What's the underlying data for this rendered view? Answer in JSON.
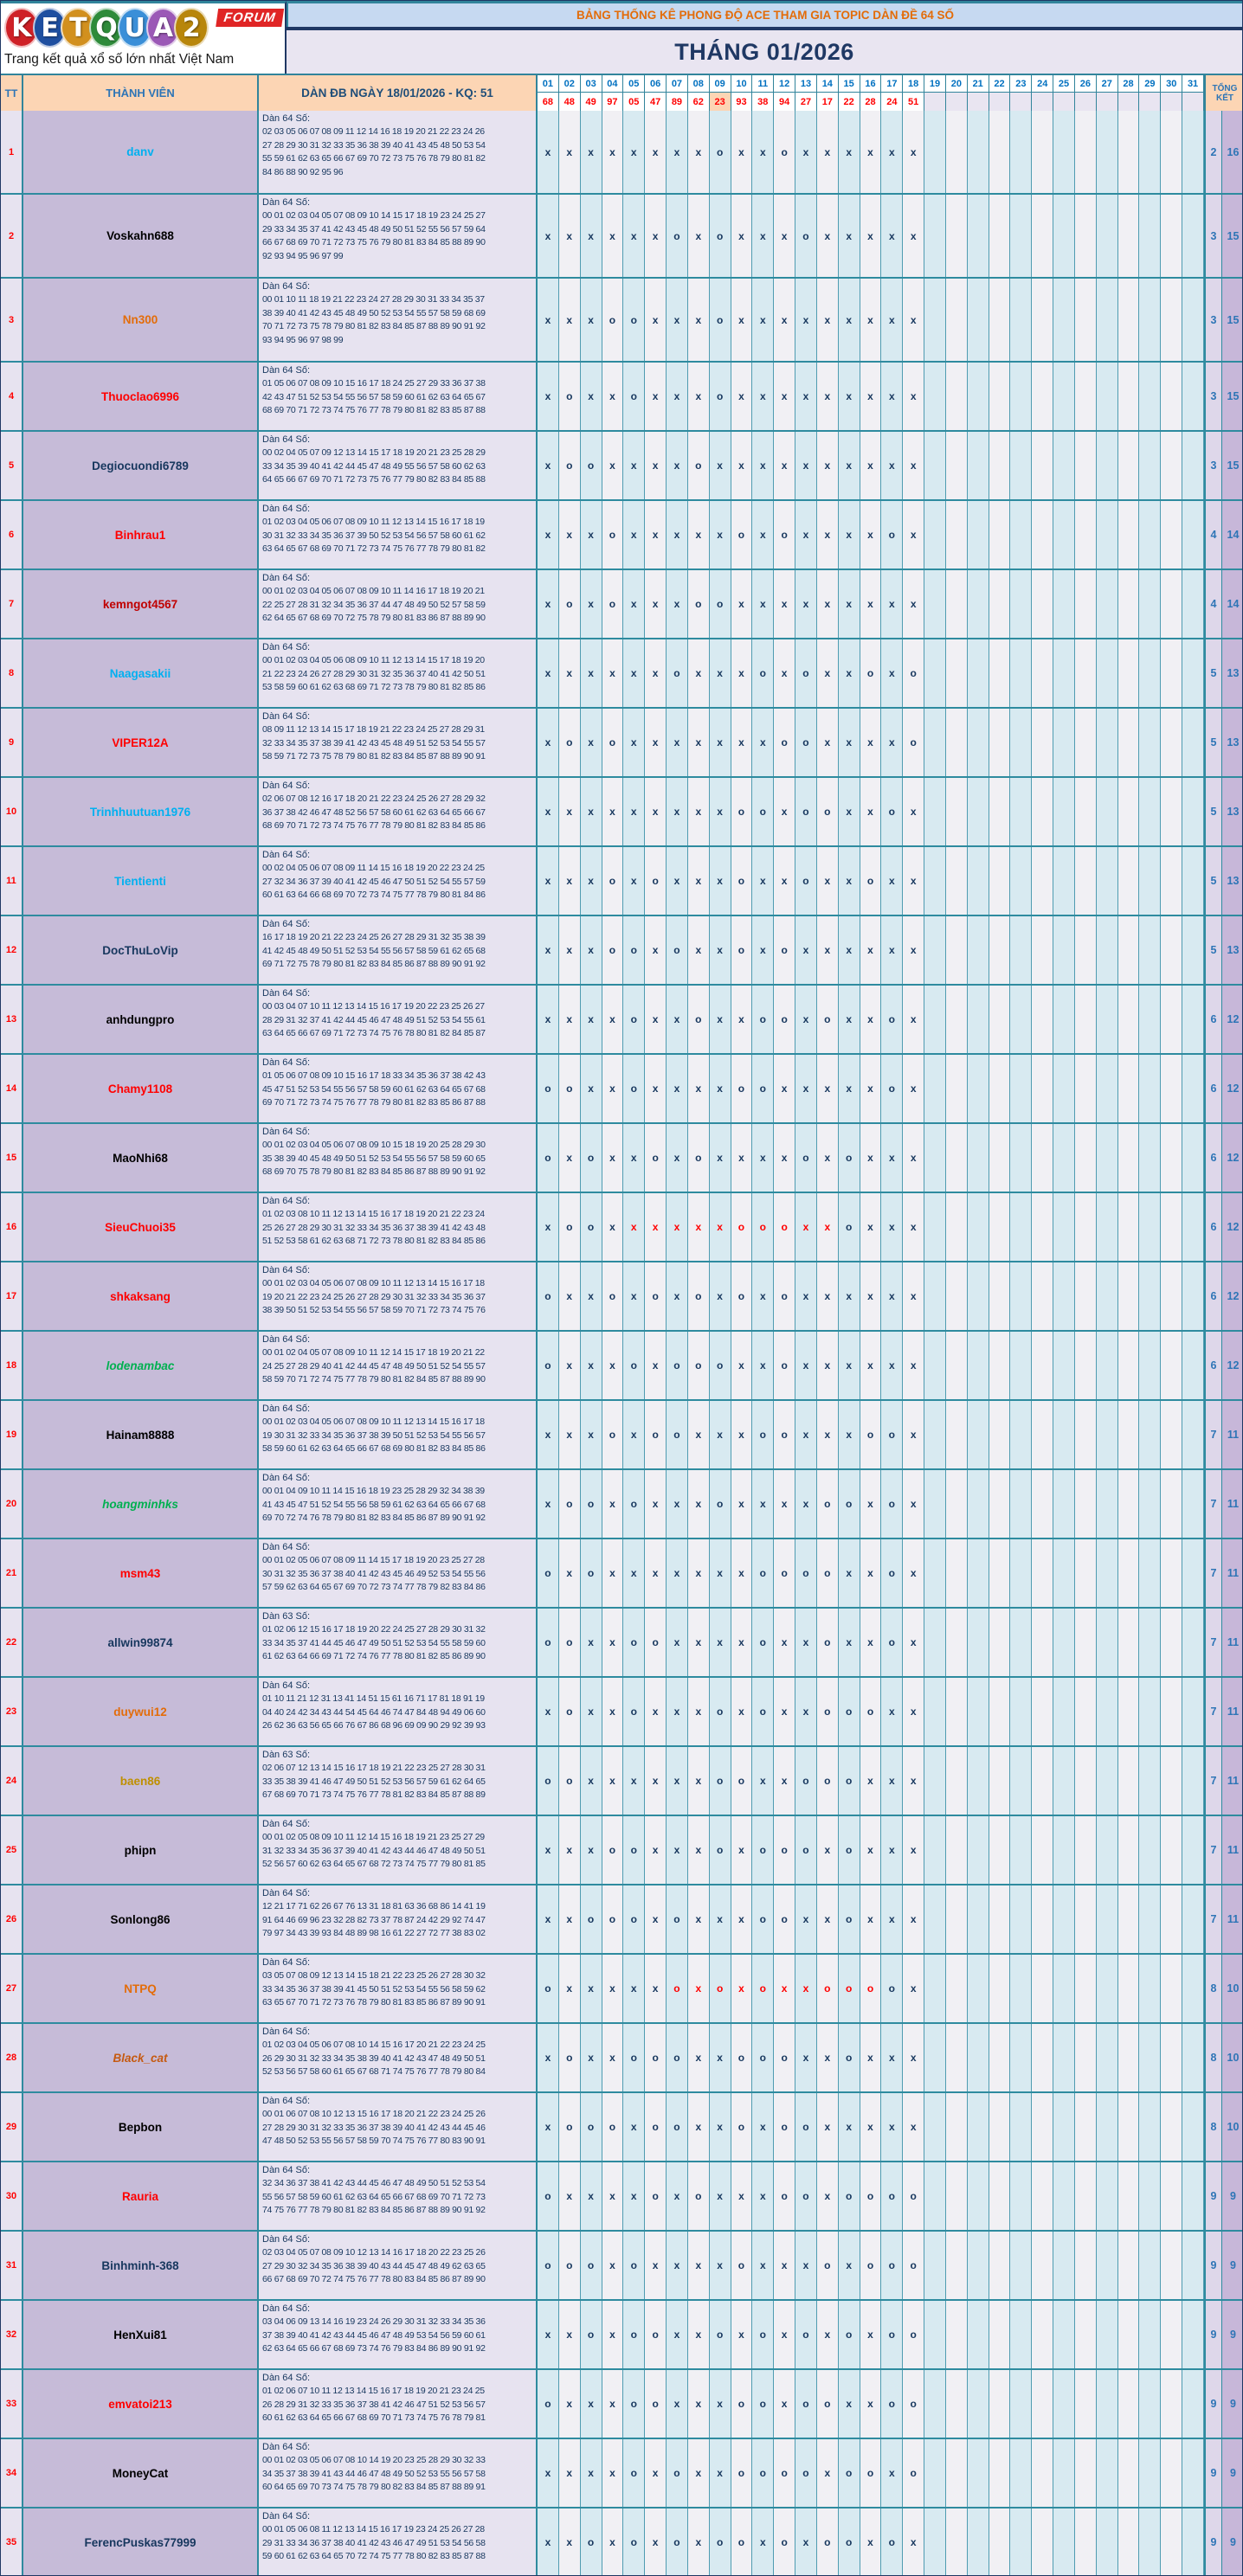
{
  "logo": {
    "letters": [
      {
        "ch": "K",
        "color": "#cf2127"
      },
      {
        "ch": "E",
        "color": "#1e4fa0"
      },
      {
        "ch": "T",
        "color": "#d2901e"
      },
      {
        "ch": "Q",
        "color": "#2e8b3a"
      },
      {
        "ch": "U",
        "color": "#3a8fd8"
      },
      {
        "ch": "A",
        "color": "#9b59b6"
      },
      {
        "ch": "2",
        "color": "#b8860b"
      }
    ],
    "forum_label": "FORUM",
    "tagline": "Trang kết quả xổ số lớn nhất Việt Nam"
  },
  "header": {
    "banner": "BẢNG THỐNG KÊ PHONG ĐỘ ACE THAM GIA TOPIC DÀN ĐỀ 64 SỐ",
    "month": "THÁNG 01/2026",
    "tt": "TT",
    "member": "THÀNH VIÊN",
    "dan": "DÀN ĐB NGÀY 18/01/2026 - KQ: 51",
    "tongket": "TỔNG KẾT",
    "days": [
      "01",
      "02",
      "03",
      "04",
      "05",
      "06",
      "07",
      "08",
      "09",
      "10",
      "11",
      "12",
      "13",
      "14",
      "15",
      "16",
      "17",
      "18",
      "19",
      "20",
      "21",
      "22",
      "23",
      "24",
      "25",
      "26",
      "27",
      "28",
      "29",
      "30",
      "31"
    ],
    "results": [
      "68",
      "48",
      "49",
      "97",
      "05",
      "47",
      "89",
      "62",
      "23",
      "93",
      "38",
      "94",
      "27",
      "17",
      "22",
      "28",
      "24",
      "51",
      "",
      "",
      "",
      "",
      "",
      "",
      "",
      "",
      "",
      "",
      "",
      "",
      ""
    ],
    "highlight_day": 9,
    "accent_colors": {
      "banner_bg": "#c6d9f1",
      "banner_text": "#e36c09",
      "header_bg": "#fcd5b4",
      "day_text": "#0070c0",
      "result_text": "#ff0000",
      "border_teal": "#2e8b9f",
      "mark_navy": "#17375e",
      "mark_red": "#ff0000"
    }
  },
  "rows": [
    {
      "tt": "1",
      "name": "danv",
      "color": "#00b0f0",
      "italic": false,
      "dan_title": "Dàn 64 Số:",
      "lines": [
        "02 03 05 06 07 08 09 11 12 14 16 18 19 20 21 22 23 24 26",
        "27 28 29 30 31 32 33 35 36 38 39 40 41 43 45 48 50 53 54",
        "55 59 61 62 63 65 66 67 69 70 72 73 75 76 78 79 80 81 82",
        "84 86 88 90 92 95 96"
      ],
      "marks": "xxxxxxxxoxxoxxxxxx",
      "red_from": 0,
      "red_to": 0,
      "total_o": "2",
      "total_x": "16"
    },
    {
      "tt": "2",
      "name": "Voskahn688",
      "color": "#000000",
      "italic": false,
      "dan_title": "Dàn 64 Số:",
      "lines": [
        "00 01 02 03 04 05 07 08 09 10 14 15 17 18 19 23 24 25 27",
        "29 33 34 35 37 41 42 43 45 48 49 50 51 52 55 56 57 59 64",
        "66 67 68 69 70 71 72 73 75 76 79 80 81 83 84 85 88 89 90",
        "92 93 94 95 96 97 99"
      ],
      "marks": "xxxxxxoxoxxxoxxxxx",
      "red_from": 0,
      "red_to": 0,
      "total_o": "3",
      "total_x": "15"
    },
    {
      "tt": "3",
      "name": "Nn300",
      "color": "#e36c09",
      "italic": false,
      "dan_title": "Dàn 64 Số:",
      "lines": [
        "00 01 10 11 18 19 21 22 23 24 27 28 29 30 31 33 34 35 37",
        "38 39 40 41 42 43 45 48 49 50 52 53 54 55 57 58 59 68 69",
        "70 71 72 73 75 78 79 80 81 82 83 84 85 87 88 89 90 91 92",
        "93 94 95 96 97 98 99"
      ],
      "marks": "xxxooxxxoxxxxxxxxx",
      "red_from": 0,
      "red_to": 0,
      "total_o": "3",
      "total_x": "15"
    },
    {
      "tt": "4",
      "name": "Thuoclao6996",
      "color": "#ff0000",
      "italic": false,
      "dan_title": "Dàn 64 Số:",
      "lines": [
        "01 05 06 07 08 09 10 15 16 17 18 24 25 27 29 33 36 37 38",
        "42 43 47 51 52 53 54 55 56 57 58 59 60 61 62 63 64 65 67",
        "68 69 70 71 72 73 74 75 76 77 78 79 80 81 82 83 85 87 88"
      ],
      "marks": "xoxxoxxxoxxxxxxxxx",
      "red_from": 0,
      "red_to": 0,
      "total_o": "3",
      "total_x": "15"
    },
    {
      "tt": "5",
      "name": "Degiocuondi6789",
      "color": "#17375e",
      "italic": false,
      "dan_title": "Dàn 64 Số:",
      "lines": [
        "00 02 04 05 07 09 12 13 14 15 17 18 19 20 21 23 25 28 29",
        "33 34 35 39 40 41 42 44 45 47 48 49 55 56 57 58 60 62 63",
        "64 65 66 67 69 70 71 72 73 75 76 77 79 80 82 83 84 85 88"
      ],
      "marks": "xooxxxxoxxxxxxxxxx",
      "red_from": 0,
      "red_to": 0,
      "total_o": "3",
      "total_x": "15"
    },
    {
      "tt": "6",
      "name": "Binhrau1",
      "color": "#ff0000",
      "italic": false,
      "dan_title": "Dàn 64 Số:",
      "lines": [
        "01 02 03 04 05 06 07 08 09 10 11 12 13 14 15 16 17 18 19",
        "30 31 32 33 34 35 36 37 39 50 52 53 54 56 57 58 60 61 62",
        "63 64 65 67 68 69 70 71 72 73 74 75 76 77 78 79 80 81 82"
      ],
      "marks": "xxxoxxxxxoxoxxxxox",
      "red_from": 0,
      "red_to": 0,
      "total_o": "4",
      "total_x": "14"
    },
    {
      "tt": "7",
      "name": "kemngot4567",
      "color": "#c00000",
      "italic": false,
      "dan_title": "Dàn 64 Số:",
      "lines": [
        "00 01 02 03 04 05 06 07 08 09 10 11 14 16 17 18 19 20 21",
        "22 25 27 28 31 32 34 35 36 37 44 47 48 49 50 52 57 58 59",
        "62 64 65 67 68 69 70 72 75 78 79 80 81 83 86 87 88 89 90"
      ],
      "marks": "xoxoxxxooxxxxxxxxx",
      "red_from": 0,
      "red_to": 0,
      "total_o": "4",
      "total_x": "14"
    },
    {
      "tt": "8",
      "name": "Naagasakii",
      "color": "#00b0f0",
      "italic": false,
      "dan_title": "Dàn 64 Số:",
      "lines": [
        "00 01 02 03 04 05 06 08 09 10 11 12 13 14 15 17 18 19 20",
        "21 22 23 24 26 27 28 29 30 31 32 35 36 37 40 41 42 50 51",
        "53 58 59 60 61 62 63 68 69 71 72 73 78 79 80 81 82 85 86"
      ],
      "marks": "xxxxxxoxxxoxoxxoxo",
      "red_from": 0,
      "red_to": 0,
      "total_o": "5",
      "total_x": "13"
    },
    {
      "tt": "9",
      "name": "VIPER12A",
      "color": "#ff0000",
      "italic": false,
      "dan_title": "Dàn 64 Số:",
      "lines": [
        "08 09 11 12 13 14 15 17 18 19 21 22 23 24 25 27 28 29 31",
        "32 33 34 35 37 38 39 41 42 43 45 48 49 51 52 53 54 55 57",
        "58 59 71 72 73 75 78 79 80 81 82 83 84 85 87 88 89 90 91"
      ],
      "marks": "xoxoxxxxxxxooxxxxo",
      "red_from": 0,
      "red_to": 0,
      "total_o": "5",
      "total_x": "13"
    },
    {
      "tt": "10",
      "name": "Trinhhuutuan1976",
      "color": "#00b0f0",
      "italic": false,
      "dan_title": "Dàn 64 Số:",
      "lines": [
        "02 06 07 08 12 16 17 18 20 21 22 23 24 25 26 27 28 29 32",
        "36 37 38 42 46 47 48 52 56 57 58 60 61 62 63 64 65 66 67",
        "68 69 70 71 72 73 74 75 76 77 78 79 80 81 82 83 84 85 86"
      ],
      "marks": "xxxxxxxxxooxooxxox",
      "red_from": 0,
      "red_to": 0,
      "total_o": "5",
      "total_x": "13"
    },
    {
      "tt": "11",
      "name": "Tientienti",
      "color": "#00b0f0",
      "italic": false,
      "dan_title": "Dàn 64 Số:",
      "lines": [
        "00 02 04 05 06 07 08 09 11 14 15 16 18 19 20 22 23 24 25",
        "27 32 34 36 37 39 40 41 42 45 46 47 50 51 52 54 55 57 59",
        "60 61 63 64 66 68 69 70 72 73 74 75 77 78 79 80 81 84 86"
      ],
      "marks": "xxxoxoxxxoxxoxxoxx",
      "red_from": 0,
      "red_to": 0,
      "total_o": "5",
      "total_x": "13"
    },
    {
      "tt": "12",
      "name": "DocThuLoVip",
      "color": "#17375e",
      "italic": false,
      "dan_title": "Dàn 64 Số:",
      "lines": [
        "16 17 18 19 20 21 22 23 24 25 26 27 28 29 31 32 35 38 39",
        "41 42 45 48 49 50 51 52 53 54 55 56 57 58 59 61 62 65 68",
        "69 71 72 75 78 79 80 81 82 83 84 85 86 87 88 89 90 91 92"
      ],
      "marks": "xxxooxoxxoxoxxxxxx",
      "red_from": 0,
      "red_to": 0,
      "total_o": "5",
      "total_x": "13"
    },
    {
      "tt": "13",
      "name": "anhdungpro",
      "color": "#000000",
      "italic": false,
      "dan_title": "Dàn 64 Số:",
      "lines": [
        "00 03 04 07 10 11 12 13 14 15 16 17 19 20 22 23 25 26 27",
        "28 29 31 32 37 41 42 44 45 46 47 48 49 51 52 53 54 55 61",
        "63 64 65 66 67 69 71 72 73 74 75 76 78 80 81 82 84 85 87"
      ],
      "marks": "xxxxoxxoxxooxoxxox",
      "red_from": 0,
      "red_to": 0,
      "total_o": "6",
      "total_x": "12"
    },
    {
      "tt": "14",
      "name": "Chamy1108",
      "color": "#ff0000",
      "italic": false,
      "dan_title": "Dàn 64 Số:",
      "lines": [
        "01 05 06 07 08 09 10 15 16 17 18 33 34 35 36 37 38 42 43",
        "45 47 51 52 53 54 55 56 57 58 59 60 61 62 63 64 65 67 68",
        "69 70 71 72 73 74 75 76 77 78 79 80 81 82 83 85 86 87 88"
      ],
      "marks": "ooxxoxxxxooxxxxxox",
      "red_from": 0,
      "red_to": 0,
      "total_o": "6",
      "total_x": "12"
    },
    {
      "tt": "15",
      "name": "MaoNhi68",
      "color": "#000000",
      "italic": false,
      "dan_title": "Dàn 64 Số:",
      "lines": [
        "00 01 02 03 04 05 06 07 08 09 10 15 18 19 20 25 28 29 30",
        "35 38 39 40 45 48 49 50 51 52 53 54 55 56 57 58 59 60 65",
        "68 69 70 75 78 79 80 81 82 83 84 85 86 87 88 89 90 91 92"
      ],
      "marks": "oxoxxoxoxxxxoxoxxx",
      "red_from": 0,
      "red_to": 0,
      "total_o": "6",
      "total_x": "12"
    },
    {
      "tt": "16",
      "name": "SieuChuoi35",
      "color": "#ff0000",
      "italic": false,
      "dan_title": "Dàn 64 Số:",
      "lines": [
        "01 02 03 08 10 11 12 13 14 15 16 17 18 19 20 21 22 23 24",
        "25 26 27 28 29 30 31 32 33 34 35 36 37 38 39 41 42 43 48",
        "51 52 53 58 61 62 63 68 71 72 73 78 80 81 82 83 84 85 86"
      ],
      "marks": "xooxxxxxxoooxxoxxx",
      "red_from": 5,
      "red_to": 14,
      "total_o": "6",
      "total_x": "12"
    },
    {
      "tt": "17",
      "name": "shkaksang",
      "color": "#ff0000",
      "italic": false,
      "dan_title": "Dàn 64 Số:",
      "lines": [
        "00 01 02 03 04 05 06 07 08 09 10 11 12 13 14 15 16 17 18",
        "19 20 21 22 23 24 25 26 27 28 29 30 31 32 33 34 35 36 37",
        "38 39 50 51 52 53 54 55 56 57 58 59 70 71 72 73 74 75 76"
      ],
      "marks": "oxxoxoxoxoxoxxxxxx",
      "red_from": 0,
      "red_to": 0,
      "total_o": "6",
      "total_x": "12"
    },
    {
      "tt": "18",
      "name": "lodenambac",
      "color": "#00b050",
      "italic": true,
      "dan_title": "Dàn 64 Số:",
      "lines": [
        "00 01 02 04 05 07 08 09 10 11 12 14 15 17 18 19 20 21 22",
        "24 25 27 28 29 40 41 42 44 45 47 48 49 50 51 52 54 55 57",
        "58 59 70 71 72 74 75 77 78 79 80 81 82 84 85 87 88 89 90"
      ],
      "marks": "oxxxoxoooxxoxxxxxx",
      "red_from": 0,
      "red_to": 0,
      "total_o": "6",
      "total_x": "12"
    },
    {
      "tt": "19",
      "name": "Hainam8888",
      "color": "#000000",
      "italic": false,
      "dan_title": "Dàn 64 Số:",
      "lines": [
        "00 01 02 03 04 05 06 07 08 09 10 11 12 13 14 15 16 17 18",
        "19 30 31 32 33 34 35 36 37 38 39 50 51 52 53 54 55 56 57",
        "58 59 60 61 62 63 64 65 66 67 68 69 80 81 82 83 84 85 86"
      ],
      "marks": "xxxoxooxxxooxxxoox",
      "red_from": 0,
      "red_to": 0,
      "total_o": "7",
      "total_x": "11"
    },
    {
      "tt": "20",
      "name": "hoangminhks",
      "color": "#00b050",
      "italic": true,
      "dan_title": "Dàn 64 Số:",
      "lines": [
        "00 01 04 09 10 11 14 15 16 18 19 23 25 28 29 32 34 38 39",
        "41 43 45 47 51 52 54 55 56 58 59 61 62 63 64 65 66 67 68",
        "69 70 72 74 76 78 79 80 81 82 83 84 85 86 87 89 90 91 92"
      ],
      "marks": "xooxoxxxoxxxxooxox",
      "red_from": 0,
      "red_to": 0,
      "total_o": "7",
      "total_x": "11"
    },
    {
      "tt": "21",
      "name": "msm43",
      "color": "#ff0000",
      "italic": false,
      "dan_title": "Dàn 64 Số:",
      "lines": [
        "00 01 02 05 06 07 08 09 11 14 15 17 18 19 20 23 25 27 28",
        "30 31 32 35 36 37 38 40 41 42 43 45 46 49 52 53 54 55 56",
        "57 59 62 63 64 65 67 69 70 72 73 74 77 78 79 82 83 84 86"
      ],
      "marks": "oxoxxxxxxxooooxxox",
      "red_from": 0,
      "red_to": 0,
      "total_o": "7",
      "total_x": "11"
    },
    {
      "tt": "22",
      "name": "allwin99874",
      "color": "#17375e",
      "italic": false,
      "dan_title": "Dàn 63 Số:",
      "lines": [
        "01 02 06 12 15 16 17 18 19 20 22 24 25 27 28 29 30 31 32",
        "33 34 35 37 41 44 45 46 47 49 50 51 52 53 54 55 58 59 60",
        "61 62 63 64 66 69 71 72 74 76 77 78 80 81 82 85 86 89 90"
      ],
      "marks": "ooxxooxxxxoxxoxxox",
      "red_from": 0,
      "red_to": 0,
      "total_o": "7",
      "total_x": "11"
    },
    {
      "tt": "23",
      "name": "duywui12",
      "color": "#e36c09",
      "italic": false,
      "dan_title": "Dàn 64 Số:",
      "lines": [
        "01 10 11 21 12 31 13 41 14 51 15 61 16 71 17 81 18 91 19",
        "04 40 24 42 34 43 44 54 45 64 46 74 47 84 48 94 49 06 60",
        "26 62 36 63 56 65 66 76 67 86 68 96 69 09 90 29 92 39 93"
      ],
      "marks": "xoxxoxxxoxoxxoooxx",
      "red_from": 0,
      "red_to": 0,
      "total_o": "7",
      "total_x": "11"
    },
    {
      "tt": "24",
      "name": "baen86",
      "color": "#bf8f00",
      "italic": false,
      "dan_title": "Dàn 63 Số:",
      "lines": [
        "02 06 07 12 13 14 15 16 17 18 19 21 22 23 25 27 28 30 31",
        "33 35 38 39 41 46 47 49 50 51 52 53 56 57 59 61 62 64 65",
        "67 68 69 70 71 73 74 75 76 77 78 81 82 83 84 85 87 88 89"
      ],
      "marks": "ooxxxxxxooxxoooxxx",
      "red_from": 0,
      "red_to": 0,
      "total_o": "7",
      "total_x": "11"
    },
    {
      "tt": "25",
      "name": "phipn",
      "color": "#000000",
      "italic": false,
      "dan_title": "Dàn 64 Số:",
      "lines": [
        "00 01 02 05 08 09 10 11 12 14 15 16 18 19 21 23 25 27 29",
        "31 32 33 34 35 36 37 39 40 41 42 43 44 46 47 48 49 50 51",
        "52 56 57 60 62 63 64 65 67 68 72 73 74 75 77 79 80 81 85"
      ],
      "marks": "xxxooxxxoxoooxoxxx",
      "red_from": 0,
      "red_to": 0,
      "total_o": "7",
      "total_x": "11"
    },
    {
      "tt": "26",
      "name": "Sonlong86",
      "color": "#000000",
      "italic": false,
      "dan_title": "Dàn 64 Số:",
      "lines": [
        "12 21 17 71 62 26 67 76 13 31 18 81 63 36 68 86 14 41 19",
        "91 64 46 69 96 23 32 28 82 73 37 78 87 24 42 29 92 74 47",
        "79 97 34 43 39 93 84 48 89 98 16 61 22 27 72 77 38 83 02"
      ],
      "marks": "xxoooxoxxxooxxoxxx",
      "red_from": 0,
      "red_to": 0,
      "total_o": "7",
      "total_x": "11"
    },
    {
      "tt": "27",
      "name": "NTPQ",
      "color": "#e36c09",
      "italic": false,
      "dan_title": "Dàn 64 Số:",
      "lines": [
        "03 05 07 08 09 12 13 14 15 18 21 22 23 25 26 27 28 30 32",
        "33 34 35 36 37 38 39 41 45 50 51 52 53 54 55 56 58 59 62",
        "63 65 67 70 71 72 73 76 78 79 80 81 83 85 86 87 89 90 91"
      ],
      "marks": "oxxxxxoxoxoxxoooox",
      "red_from": 7,
      "red_to": 16,
      "total_o": "8",
      "total_x": "10"
    },
    {
      "tt": "28",
      "name": "Black_cat",
      "color": "#c55a11",
      "italic": true,
      "dan_title": "Dàn 64 Số:",
      "lines": [
        "01 02 03 04 05 06 07 08 10 14 15 16 17 20 21 22 23 24 25",
        "26 29 30 31 32 33 34 35 38 39 40 41 42 43 47 48 49 50 51",
        "52 53 56 57 58 60 61 65 67 68 71 74 75 76 77 78 79 80 84"
      ],
      "marks": "xoxxoooxxoooxxoxxx",
      "red_from": 0,
      "red_to": 0,
      "total_o": "8",
      "total_x": "10"
    },
    {
      "tt": "29",
      "name": "Bepbon",
      "color": "#000000",
      "italic": false,
      "dan_title": "Dàn 64 Số:",
      "lines": [
        "00 01 06 07 08 10 12 13 15 16 17 18 20 21 22 23 24 25 26",
        "27 28 29 30 31 32 33 35 36 37 38 39 40 41 42 43 44 45 46",
        "47 48 50 52 53 55 56 57 58 59 70 74 75 76 77 80 83 90 91"
      ],
      "marks": "xoooxooxxoxooxxxxx",
      "red_from": 0,
      "red_to": 0,
      "total_o": "8",
      "total_x": "10"
    },
    {
      "tt": "30",
      "name": "Rauria",
      "color": "#ff0000",
      "italic": false,
      "dan_title": "Dàn 64 Số:",
      "lines": [
        "32 34 36 37 38 41 42 43 44 45 46 47 48 49 50 51 52 53 54",
        "55 56 57 58 59 60 61 62 63 64 65 66 67 68 69 70 71 72 73",
        "74 75 76 77 78 79 80 81 82 83 84 85 86 87 88 89 90 91 92"
      ],
      "marks": "oxxxxoxoxxxooxoooo",
      "red_from": 0,
      "red_to": 0,
      "total_o": "9",
      "total_x": "9"
    },
    {
      "tt": "31",
      "name": "Binhminh-368",
      "color": "#17375e",
      "italic": false,
      "dan_title": "Dàn 64 Số:",
      "lines": [
        "02 03 04 05 07 08 09 10 12 13 14 16 17 18 20 22 23 25 26",
        "27 29 30 32 34 35 36 38 39 40 43 44 45 47 48 49 62 63 65",
        "66 67 68 69 70 72 74 75 76 77 78 80 83 84 85 86 87 89 90"
      ],
      "marks": "oooxoxxxxoxxxoxooo",
      "red_from": 0,
      "red_to": 0,
      "total_o": "9",
      "total_x": "9"
    },
    {
      "tt": "32",
      "name": "HenXui81",
      "color": "#000000",
      "italic": false,
      "dan_title": "Dàn 64 Số:",
      "lines": [
        "03 04 06 09 13 14 16 19 23 24 26 29 30 31 32 33 34 35 36",
        "37 38 39 40 41 42 43 44 45 46 47 48 49 53 54 56 59 60 61",
        "62 63 64 65 66 67 68 69 73 74 76 79 83 84 86 89 90 91 92"
      ],
      "marks": "xxoxooxxoxoxoxoxoo",
      "red_from": 0,
      "red_to": 0,
      "total_o": "9",
      "total_x": "9"
    },
    {
      "tt": "33",
      "name": "emvatoi213",
      "color": "#ff0000",
      "italic": false,
      "dan_title": "Dàn 64 Số:",
      "lines": [
        "01 02 06 07 10 11 12 13 14 15 16 17 18 19 20 21 23 24 25",
        "26 28 29 31 32 33 35 36 37 38 41 42 46 47 51 52 53 56 57",
        "60 61 62 63 64 65 66 67 68 69 70 71 73 74 75 76 78 79 81"
      ],
      "marks": "oxxxooxxxooxooxxoo",
      "red_from": 0,
      "red_to": 0,
      "total_o": "9",
      "total_x": "9"
    },
    {
      "tt": "34",
      "name": "MoneyCat",
      "color": "#000000",
      "italic": false,
      "dan_title": "Dàn 64 Số:",
      "lines": [
        "00 01 02 03 05 06 07 08 10 14 19 20 23 25 28 29 30 32 33",
        "34 35 37 38 39 41 43 44 46 47 48 49 50 52 53 55 56 57 58",
        "60 64 65 69 70 73 74 75 78 79 80 82 83 84 85 87 88 89 91"
      ],
      "marks": "xxxxoxoxxooooxooxo",
      "red_from": 0,
      "red_to": 0,
      "total_o": "9",
      "total_x": "9"
    },
    {
      "tt": "35",
      "name": "FerencPuskas77999",
      "color": "#17375e",
      "italic": false,
      "dan_title": "Dàn 64 Số:",
      "lines": [
        "00 01 05 06 08 11 12 13 14 15 16 17 19 23 24 25 26 27 28",
        "29 31 33 34 36 37 38 40 41 42 43 46 47 49 51 53 54 56 58",
        "59 60 61 62 63 64 65 70 72 74 75 77 78 80 82 83 85 87 88"
      ],
      "marks": "xxoxoxoxooxoxooxox",
      "red_from": 0,
      "red_to": 0,
      "total_o": "9",
      "total_x": "9"
    }
  ]
}
